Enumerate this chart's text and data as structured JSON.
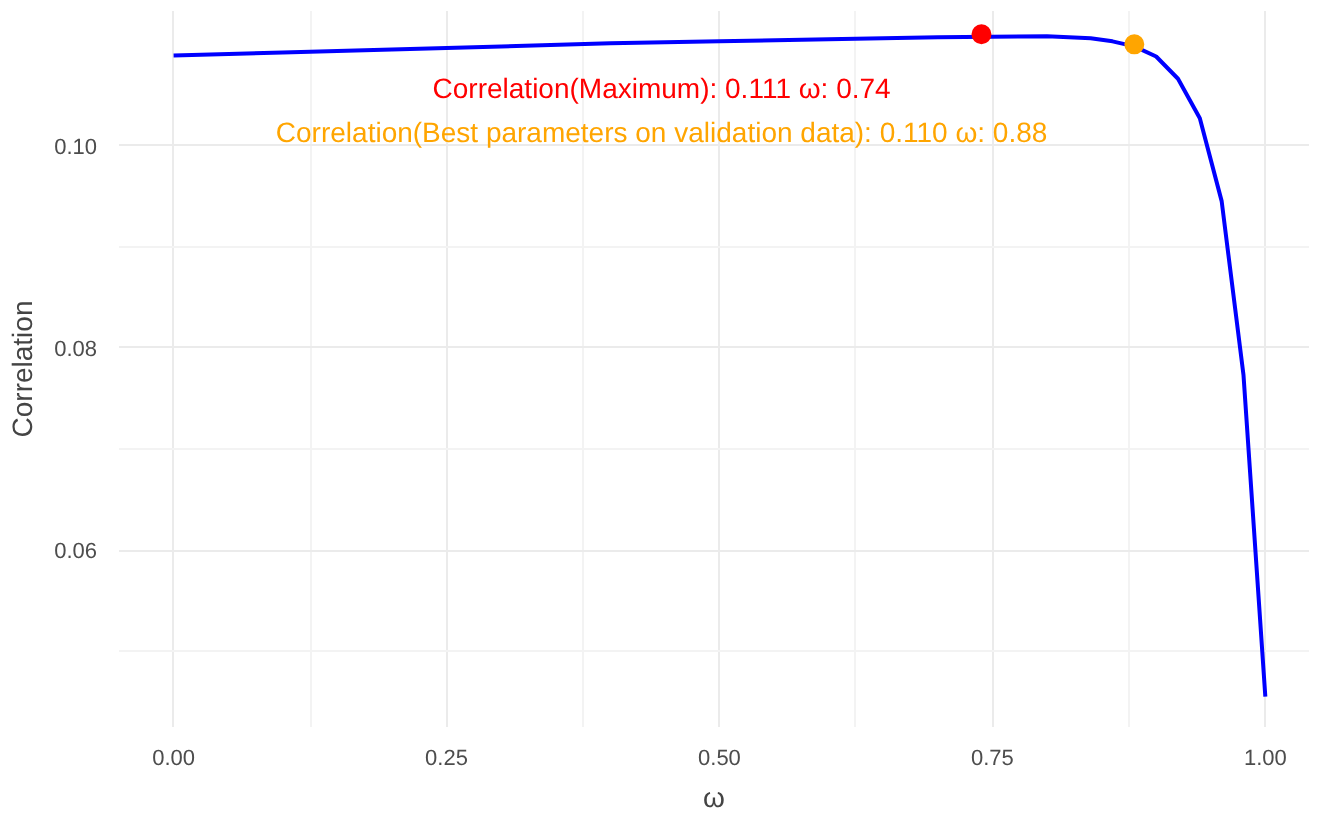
{
  "chart_data": {
    "type": "line",
    "xlabel": "ω",
    "ylabel": "Correlation",
    "series": [
      {
        "color": "#0000ff",
        "x": [
          0,
          0.1,
          0.2,
          0.3,
          0.4,
          0.5,
          0.6,
          0.7,
          0.8,
          0.84,
          0.86,
          0.88,
          0.9,
          0.92,
          0.94,
          0.96,
          0.98,
          1.0
        ],
        "values": [
          0.1089,
          0.1092,
          0.1095,
          0.1098,
          0.1101,
          0.1103,
          0.1105,
          0.1107,
          0.1108,
          0.1106,
          0.1103,
          0.1098,
          0.1088,
          0.1066,
          0.1027,
          0.0945,
          0.0773,
          0.0455
        ]
      },
      {
        "type": "scatter",
        "x": [
          0.74,
          0.88
        ],
        "values": [
          0.111,
          0.11
        ],
        "colors": [
          "#ff0000",
          "#ffa500"
        ]
      }
    ],
    "annotations": [
      "Correlation(Maximum): 0.111 ω: 0.74",
      "Correlation(Best parameters on validation data): 0.110 ω: 0.88"
    ],
    "xlim": [
      -0.05,
      1.04
    ],
    "ylim": [
      0.0425,
      0.1133
    ],
    "xticks": [
      {
        "value": 0,
        "label": "0.00"
      },
      {
        "value": 0.25,
        "label": "0.25"
      },
      {
        "value": 0.5,
        "label": "0.50"
      },
      {
        "value": 0.75,
        "label": "0.75"
      },
      {
        "value": 1.0,
        "label": "1.00"
      }
    ],
    "yticks": [
      {
        "value": 0.06,
        "label": "0.06"
      },
      {
        "value": 0.08,
        "label": "0.08"
      },
      {
        "value": 0.1,
        "label": "0.10"
      }
    ],
    "grid": true,
    "line_style": "solid"
  }
}
